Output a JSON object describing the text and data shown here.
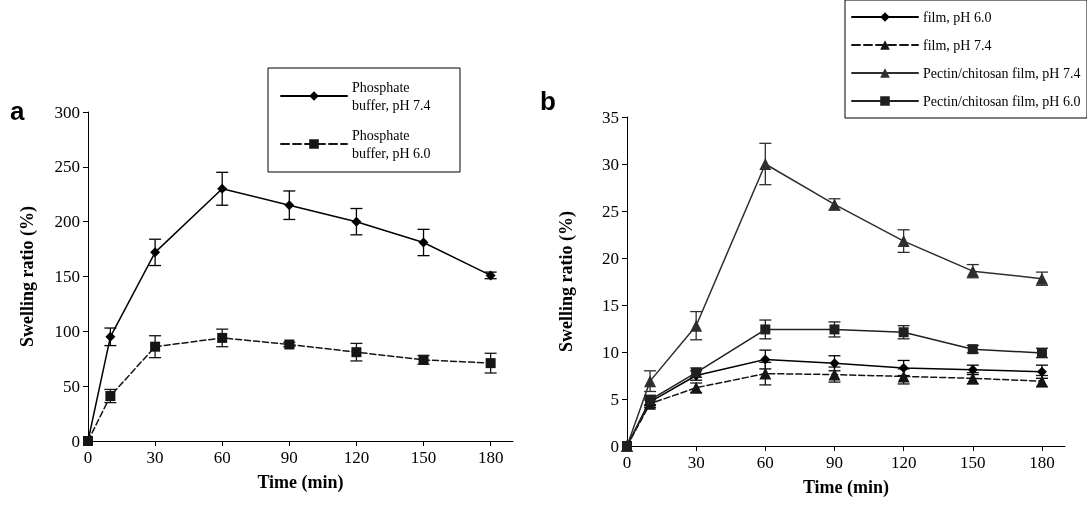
{
  "chart_data": [
    {
      "type": "line",
      "annotations": [
        "a"
      ],
      "xlabel": "Time (min)",
      "ylabel": "Swelling ratio (%)",
      "xlim": [
        0,
        190
      ],
      "xticks": [
        0,
        30,
        60,
        90,
        120,
        150,
        180
      ],
      "ylim": [
        0,
        300
      ],
      "yticks": [
        0,
        50,
        100,
        150,
        200,
        250,
        300
      ],
      "grid": false,
      "legend": "top right",
      "series": [
        {
          "name": "Phosphate buffer, pH 7.4",
          "color": "#000000",
          "marker": "diamond",
          "line_style": "solid",
          "x": [
            0,
            10,
            30,
            60,
            90,
            120,
            150,
            180
          ],
          "values": [
            0,
            95,
            172,
            230,
            215,
            200,
            181,
            151
          ],
          "errors": [
            null,
            8,
            12,
            15,
            13,
            12,
            12,
            3
          ]
        },
        {
          "name": "Phosphate buffer, pH 6.0",
          "color": "#151515",
          "marker": "square",
          "line_style": "dashed",
          "x": [
            0,
            10,
            30,
            60,
            90,
            120,
            150,
            180
          ],
          "values": [
            0,
            41,
            86,
            94,
            88,
            81,
            74,
            71
          ],
          "errors": [
            null,
            6,
            10,
            8,
            2,
            8,
            4,
            9
          ]
        }
      ]
    },
    {
      "type": "line",
      "annotations": [
        "b"
      ],
      "xlabel": "Time (min)",
      "ylabel": "Swelling ratio (%)",
      "xlim": [
        0,
        190
      ],
      "xticks": [
        0,
        30,
        60,
        90,
        120,
        150,
        180
      ],
      "ylim": [
        0,
        35
      ],
      "yticks": [
        0,
        5,
        10,
        15,
        20,
        25,
        30,
        35
      ],
      "grid": false,
      "legend": "top right",
      "series": [
        {
          "name": "film, pH 6.0",
          "color": "#000000",
          "marker": "diamond",
          "line_style": "solid",
          "x": [
            0,
            10,
            30,
            60,
            90,
            120,
            150,
            180
          ],
          "values": [
            0,
            4.7,
            7.5,
            9.2,
            8.8,
            8.3,
            8.1,
            7.9
          ],
          "errors": [
            null,
            0.4,
            0.5,
            1.0,
            0.8,
            0.8,
            0.5,
            0.7
          ]
        },
        {
          "name": "film, pH 7.4",
          "color": "#151515",
          "marker": "triangle",
          "line_style": "dashed",
          "x": [
            0,
            10,
            30,
            60,
            90,
            120,
            150,
            180
          ],
          "values": [
            0,
            4.5,
            6.2,
            7.7,
            7.6,
            7.4,
            7.2,
            6.9
          ],
          "errors": [
            null,
            0.4,
            0.5,
            1.2,
            0.8,
            0.8,
            0.6,
            0.6
          ]
        },
        {
          "name": "Pectin/chitosan film, pH 7.4",
          "color": "#2e2e2e",
          "marker": "triangle",
          "line_style": "solid",
          "x": [
            0,
            10,
            30,
            60,
            90,
            120,
            150,
            180
          ],
          "values": [
            0,
            6.9,
            12.8,
            30.0,
            25.7,
            21.8,
            18.6,
            17.8
          ],
          "errors": [
            null,
            1.1,
            1.5,
            2.2,
            0.6,
            1.2,
            0.7,
            0.7
          ]
        },
        {
          "name": "Pectin/chitosan film, pH 6.0",
          "color": "#202020",
          "marker": "square",
          "line_style": "solid",
          "x": [
            0,
            10,
            30,
            60,
            90,
            120,
            150,
            180
          ],
          "values": [
            0,
            4.9,
            7.8,
            12.4,
            12.4,
            12.1,
            10.3,
            9.9
          ],
          "errors": [
            null,
            0.5,
            0.5,
            1.0,
            0.8,
            0.7,
            0.4,
            0.5
          ]
        }
      ]
    }
  ]
}
